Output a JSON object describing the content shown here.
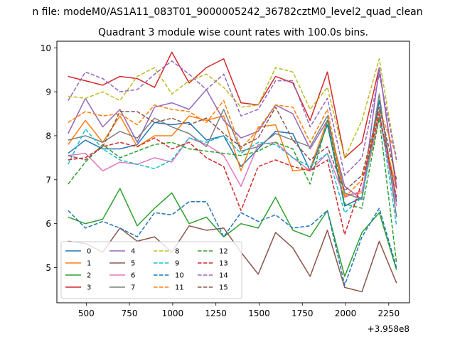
{
  "suptitle": "n file: modeM0/AS1A11_083T01_9000005242_36782cztM0_level2_quad_clean",
  "chart_data": {
    "type": "line",
    "title": "Quadrant 3 module wise count rates with 100.0s bins.",
    "xlabel": "",
    "ylabel": "",
    "x_offset_label": "+3.958e8",
    "xlim": [
      330,
      2370
    ],
    "ylim": [
      4.2,
      10.15
    ],
    "xticks": [
      500,
      750,
      1000,
      1250,
      1500,
      1750,
      2000,
      2250
    ],
    "xtick_labels": [
      "500",
      "750",
      "1000",
      "1250",
      "1500",
      "1750",
      "2000",
      "2250"
    ],
    "yticks": [
      5,
      6,
      7,
      8,
      9,
      10
    ],
    "ytick_labels": [
      "5",
      "6",
      "7",
      "8",
      "9",
      "10"
    ],
    "grid": false,
    "legend_position": "lower-left",
    "legend_columns": 4,
    "x": [
      395,
      495,
      595,
      695,
      795,
      895,
      995,
      1095,
      1195,
      1295,
      1395,
      1495,
      1595,
      1695,
      1795,
      1895,
      1995,
      2095,
      2195,
      2295
    ],
    "series": [
      {
        "name": "0",
        "color": "#1f77b4",
        "dash": "solid",
        "values": [
          7.6,
          7.9,
          7.7,
          7.7,
          7.8,
          8.3,
          8.25,
          8.3,
          7.9,
          8.0,
          7.3,
          7.7,
          8.1,
          8.05,
          7.2,
          8.25,
          6.4,
          6.6,
          8.8,
          6.5
        ]
      },
      {
        "name": "1",
        "color": "#ff7f0e",
        "dash": "solid",
        "values": [
          7.8,
          8.35,
          7.85,
          8.45,
          7.75,
          8.0,
          8.0,
          8.45,
          8.35,
          8.45,
          7.2,
          8.2,
          8.25,
          7.2,
          7.25,
          8.35,
          6.65,
          6.7,
          8.4,
          6.8
        ]
      },
      {
        "name": "2",
        "color": "#2ca02c",
        "dash": "solid",
        "values": [
          6.15,
          6.0,
          6.1,
          6.8,
          5.95,
          6.35,
          6.7,
          6.0,
          6.15,
          5.7,
          6.0,
          5.9,
          6.6,
          5.85,
          5.7,
          6.3,
          4.8,
          5.8,
          6.25,
          4.95
        ]
      },
      {
        "name": "3",
        "color": "#d62728",
        "dash": "solid",
        "values": [
          9.35,
          9.25,
          9.15,
          9.35,
          9.3,
          9.1,
          9.9,
          9.2,
          9.55,
          9.75,
          8.75,
          8.7,
          9.35,
          9.2,
          8.35,
          9.45,
          7.5,
          7.85,
          9.55,
          6.8
        ]
      },
      {
        "name": "4",
        "color": "#9467bd",
        "dash": "solid",
        "values": [
          8.05,
          8.85,
          8.2,
          8.6,
          7.85,
          8.65,
          8.75,
          8.6,
          9.05,
          8.35,
          7.95,
          8.1,
          8.7,
          8.5,
          7.7,
          8.35,
          6.85,
          6.55,
          9.55,
          6.85
        ]
      },
      {
        "name": "5",
        "color": "#8c564b",
        "dash": "solid",
        "values": [
          5.6,
          5.55,
          5.35,
          5.9,
          5.6,
          5.7,
          5.35,
          5.95,
          5.85,
          5.9,
          5.35,
          4.85,
          5.8,
          5.45,
          4.8,
          5.85,
          4.55,
          4.45,
          5.6,
          4.65
        ]
      },
      {
        "name": "6",
        "color": "#e377c2",
        "dash": "solid",
        "values": [
          7.55,
          7.6,
          7.2,
          7.4,
          7.35,
          7.5,
          7.4,
          7.95,
          7.8,
          7.55,
          6.85,
          7.8,
          7.85,
          7.5,
          7.2,
          7.6,
          6.6,
          6.75,
          8.45,
          6.4
        ]
      },
      {
        "name": "7",
        "color": "#7f7f7f",
        "dash": "solid",
        "values": [
          7.9,
          8.0,
          7.85,
          8.1,
          7.95,
          8.4,
          8.2,
          8.05,
          7.75,
          8.6,
          7.65,
          7.75,
          8.05,
          7.9,
          7.75,
          8.45,
          6.7,
          6.55,
          8.95,
          6.15
        ]
      },
      {
        "name": "8",
        "color": "#bcbd22",
        "dash": "dashed",
        "values": [
          8.9,
          8.85,
          9.0,
          8.8,
          9.35,
          9.55,
          8.95,
          9.25,
          9.4,
          9.1,
          8.65,
          8.7,
          9.55,
          9.45,
          8.6,
          9.1,
          7.5,
          8.35,
          9.75,
          7.4
        ]
      },
      {
        "name": "9",
        "color": "#17becf",
        "dash": "dashed",
        "values": [
          7.35,
          8.15,
          7.7,
          7.45,
          7.35,
          7.25,
          7.45,
          7.95,
          7.85,
          8.0,
          7.6,
          7.85,
          7.8,
          7.5,
          7.3,
          7.6,
          6.25,
          6.6,
          8.6,
          5.95
        ]
      },
      {
        "name": "10",
        "color": "#1f77b4",
        "dash": "dashed",
        "values": [
          6.3,
          5.9,
          6.05,
          5.9,
          5.7,
          6.25,
          6.2,
          6.5,
          6.5,
          5.7,
          6.25,
          6.05,
          6.2,
          5.9,
          5.95,
          6.3,
          4.6,
          5.7,
          6.35,
          5.0
        ]
      },
      {
        "name": "11",
        "color": "#ff7f0e",
        "dash": "dashed",
        "values": [
          8.3,
          8.55,
          8.45,
          8.5,
          8.25,
          8.7,
          8.6,
          8.55,
          8.3,
          8.8,
          7.7,
          8.15,
          8.7,
          8.65,
          7.85,
          8.6,
          6.6,
          7.0,
          8.6,
          7.55
        ]
      },
      {
        "name": "12",
        "color": "#2ca02c",
        "dash": "dashed",
        "values": [
          6.9,
          7.4,
          7.8,
          7.5,
          7.65,
          7.8,
          7.85,
          7.7,
          7.65,
          7.6,
          7.55,
          7.65,
          7.85,
          7.7,
          6.9,
          8.35,
          6.45,
          6.35,
          8.4,
          5.1
        ]
      },
      {
        "name": "13",
        "color": "#d62728",
        "dash": "dashed",
        "values": [
          7.45,
          7.5,
          7.75,
          7.85,
          7.75,
          7.95,
          7.7,
          7.85,
          7.5,
          7.3,
          6.3,
          7.3,
          7.45,
          7.3,
          7.2,
          7.45,
          5.75,
          6.95,
          8.5,
          6.6
        ]
      },
      {
        "name": "14",
        "color": "#9467bd",
        "dash": "dashed",
        "values": [
          8.8,
          9.45,
          9.3,
          9.0,
          9.05,
          9.4,
          9.7,
          9.4,
          9.05,
          9.4,
          8.45,
          8.6,
          9.25,
          9.25,
          8.2,
          8.85,
          7.1,
          7.5,
          9.4,
          7.45
        ]
      },
      {
        "name": "15",
        "color": "#8c564b",
        "dash": "dashed",
        "values": [
          7.55,
          7.45,
          7.75,
          8.55,
          8.55,
          8.3,
          8.4,
          8.25,
          8.4,
          8.05,
          7.75,
          7.95,
          8.65,
          7.9,
          7.45,
          7.75,
          6.75,
          7.1,
          8.65,
          7.0
        ]
      }
    ]
  }
}
